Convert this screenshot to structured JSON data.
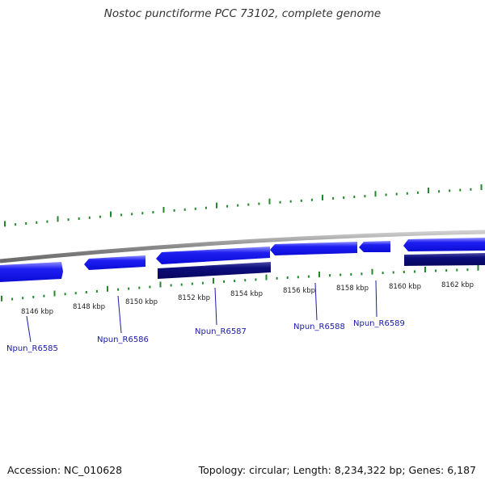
{
  "title": "Nostoc punctiforme PCC 73102, complete genome",
  "footer": {
    "accession": "Accession: NC_010628",
    "summary": "Topology: circular; Length: 8,234,322 bp; Genes: 6,187"
  },
  "scale_labels": [
    "8146 kbp",
    "8148 kbp",
    "8150 kbp",
    "8152 kbp",
    "8154 kbp",
    "8156 kbp",
    "8158 kbp",
    "8160 kbp",
    "8162 kbp"
  ],
  "gene_labels": [
    "Npun_R6585",
    "Npun_R6586",
    "Npun_R6587",
    "Npun_R6588",
    "Npun_R6589"
  ],
  "colors": {
    "forward_gene": "#1414ee",
    "reverse_gene": "#0a0a78",
    "tick": "#22882a",
    "backbone": "#8a8a8a",
    "gene_label": "#1a1aa8"
  }
}
